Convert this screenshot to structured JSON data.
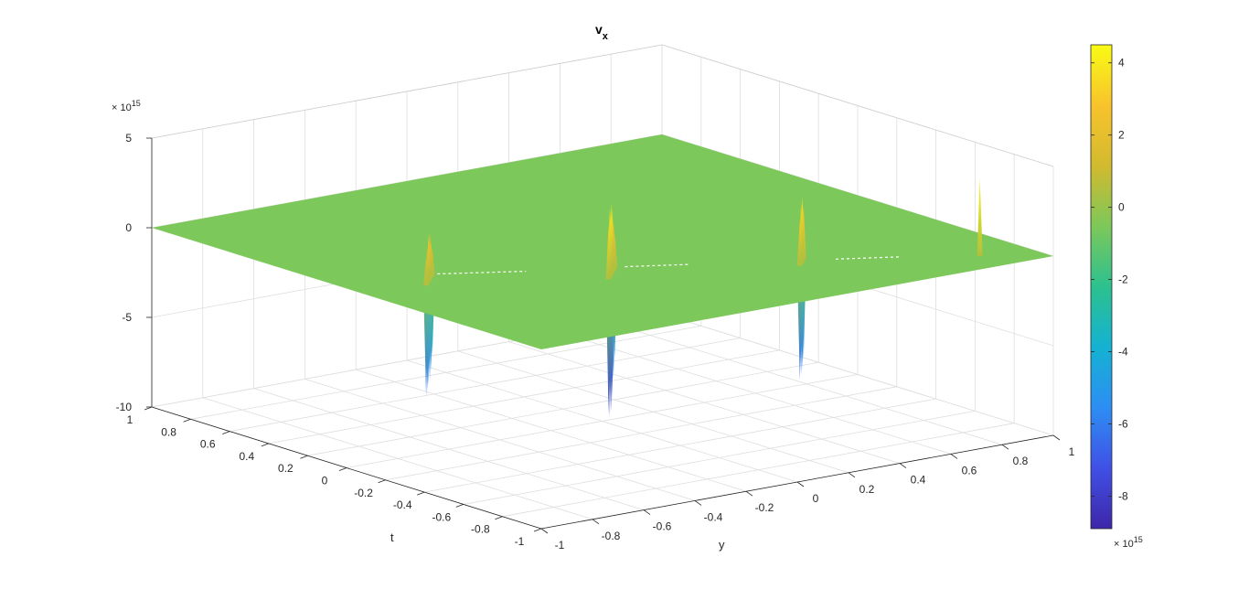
{
  "chart_data": {
    "type": "surface",
    "title": "v",
    "title_subscript": "x",
    "xlabel": "y",
    "ylabel": "t",
    "zlabel": "",
    "x_ticks": [
      "-1",
      "-0.8",
      "-0.6",
      "-0.4",
      "-0.2",
      "0",
      "0.2",
      "0.4",
      "0.6",
      "0.8",
      "1"
    ],
    "y_ticks": [
      "-1",
      "-0.8",
      "-0.6",
      "-0.4",
      "-0.2",
      "0",
      "0.2",
      "0.4",
      "0.6",
      "0.8",
      "1"
    ],
    "z_ticks": [
      "-10",
      "-5",
      "0",
      "5"
    ],
    "z_exponent": "× 10",
    "z_exponent_power": "15",
    "xlim": [
      -1,
      1
    ],
    "ylim": [
      -1,
      1
    ],
    "zlim": [
      -10,
      5
    ],
    "z_scale": 1000000000000000.0,
    "surface_base_value": 0,
    "surface_color": "#7dc85a",
    "spikes": [
      {
        "group": 1,
        "y": -0.78,
        "t": -0.12,
        "up": 1.5,
        "down": -6.2
      },
      {
        "group": 1,
        "y": -0.76,
        "t": -0.1,
        "up": 2.0,
        "down": -6.0
      },
      {
        "group": 1,
        "y": -0.74,
        "t": -0.08,
        "up": 2.6,
        "down": -5.8
      },
      {
        "group": 1,
        "y": -0.72,
        "t": -0.06,
        "up": 2.6,
        "down": -5.6
      },
      {
        "group": 1,
        "y": -0.7,
        "t": -0.04,
        "up": 2.0,
        "down": -5.2
      },
      {
        "group": 1,
        "y": -0.68,
        "t": -0.02,
        "up": 1.5,
        "down": -4.6
      },
      {
        "group": 2,
        "y": -0.28,
        "t": -0.4,
        "up": 3.0,
        "down": -7.5
      },
      {
        "group": 2,
        "y": -0.26,
        "t": -0.38,
        "up": 3.8,
        "down": -7.8
      },
      {
        "group": 2,
        "y": -0.24,
        "t": -0.36,
        "up": 4.0,
        "down": -7.6
      },
      {
        "group": 2,
        "y": -0.22,
        "t": -0.34,
        "up": 3.6,
        "down": -7.0
      },
      {
        "group": 2,
        "y": -0.2,
        "t": -0.32,
        "up": 2.8,
        "down": -6.0
      },
      {
        "group": 2,
        "y": -0.18,
        "t": -0.3,
        "up": 2.0,
        "down": -5.0
      },
      {
        "group": 3,
        "y": 0.3,
        "t": -0.62,
        "up": 2.6,
        "down": -6.4
      },
      {
        "group": 3,
        "y": 0.32,
        "t": -0.6,
        "up": 3.4,
        "down": -6.2
      },
      {
        "group": 3,
        "y": 0.34,
        "t": -0.58,
        "up": 3.6,
        "down": -6.0
      },
      {
        "group": 3,
        "y": 0.36,
        "t": -0.56,
        "up": 3.0,
        "down": -5.6
      },
      {
        "group": 4,
        "y": 0.82,
        "t": -0.86,
        "up": 4.3,
        "down": 0
      }
    ],
    "colorbar": {
      "ticks": [
        "4",
        "2",
        "0",
        "-2",
        "-4",
        "-6",
        "-8"
      ],
      "tick_values": [
        4,
        2,
        0,
        -2,
        -4,
        -6,
        -8
      ],
      "range": [
        -8.9,
        4.5
      ],
      "exponent": "× 10",
      "exponent_power": "15",
      "colormap": [
        "#3e26a8",
        "#4050e5",
        "#2d8ef3",
        "#14b2d2",
        "#2cc18f",
        "#7dc85a",
        "#d2ba2e",
        "#f8c32c",
        "#f9fb14"
      ]
    }
  }
}
